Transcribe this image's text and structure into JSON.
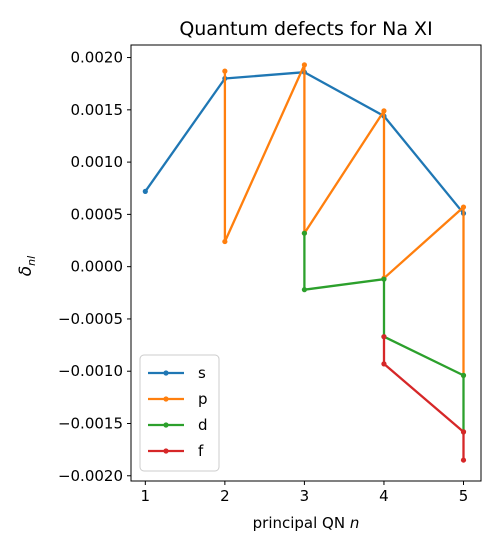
{
  "chart_data": {
    "type": "line",
    "title": "Quantum defects for Na XI",
    "xlabel_text": "principal QN ",
    "xlabel_var": "n",
    "ylabel_main": "δ",
    "ylabel_sub": "nl",
    "xlim": [
      0.82,
      5.22
    ],
    "ylim": [
      -0.00205,
      0.00212
    ],
    "xticks": [
      1,
      2,
      3,
      4,
      5
    ],
    "xtick_labels": [
      "1",
      "2",
      "3",
      "4",
      "5"
    ],
    "yticks": [
      -0.002,
      -0.0015,
      -0.001,
      -0.0005,
      0.0,
      0.0005,
      0.001,
      0.0015,
      0.002
    ],
    "ytick_labels": [
      "−0.0020",
      "−0.0015",
      "−0.0010",
      "−0.0005",
      "0.0000",
      "0.0005",
      "0.0010",
      "0.0015",
      "0.0020"
    ],
    "grid": false,
    "legend_position": "lower-left",
    "series": [
      {
        "name": "s",
        "color": "#1f77b4",
        "points": [
          [
            1,
            0.00072
          ],
          [
            2,
            0.0018
          ],
          [
            3,
            0.00186
          ],
          [
            4,
            0.00144
          ],
          [
            5,
            0.00051
          ]
        ]
      },
      {
        "name": "p",
        "color": "#ff7f0e",
        "points": [
          [
            2,
            0.00187
          ],
          [
            2,
            0.00024
          ],
          [
            3,
            0.00193
          ],
          [
            3,
            0.00032
          ],
          [
            4,
            0.00149
          ],
          [
            4,
            -0.00011
          ],
          [
            5,
            0.00057
          ],
          [
            5,
            -0.00104
          ]
        ]
      },
      {
        "name": "d",
        "color": "#2ca02c",
        "points": [
          [
            3,
            0.00032
          ],
          [
            3,
            -0.00022
          ],
          [
            4,
            -0.00012
          ],
          [
            4,
            -0.00067
          ],
          [
            5,
            -0.00104
          ],
          [
            5,
            -0.00158
          ]
        ]
      },
      {
        "name": "f",
        "color": "#d62728",
        "points": [
          [
            4,
            -0.00067
          ],
          [
            4,
            -0.00093
          ],
          [
            5,
            -0.00158
          ],
          [
            5,
            -0.00185
          ]
        ]
      }
    ]
  }
}
